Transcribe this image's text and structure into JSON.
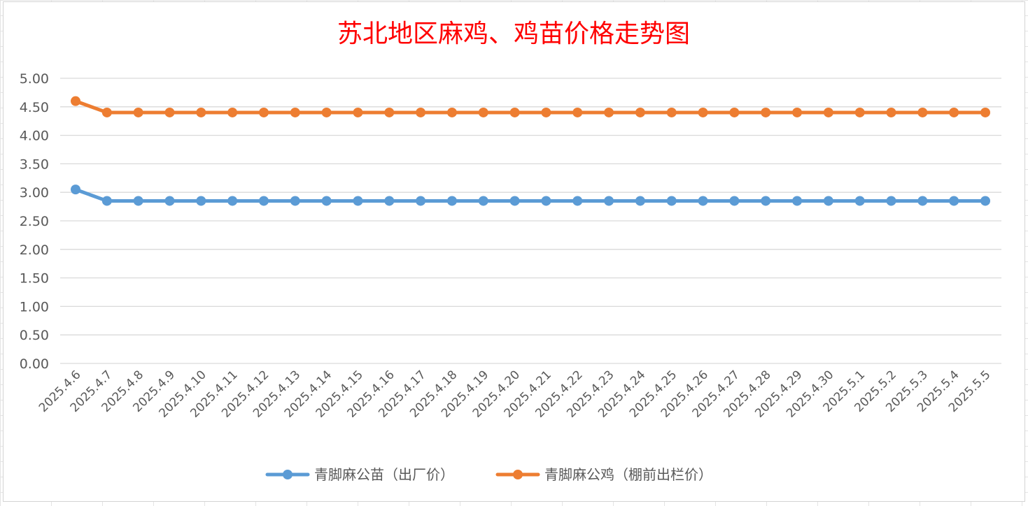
{
  "chart_data": {
    "type": "line",
    "title": "苏北地区麻鸡、鸡苗价格走势图",
    "categories": [
      "2025.4.6",
      "2025.4.7",
      "2025.4.8",
      "2025.4.9",
      "2025.4.10",
      "2025.4.11",
      "2025.4.12",
      "2025.4.13",
      "2025.4.14",
      "2025.4.15",
      "2025.4.16",
      "2025.4.17",
      "2025.4.18",
      "2025.4.19",
      "2025.4.20",
      "2025.4.21",
      "2025.4.22",
      "2025.4.23",
      "2025.4.24",
      "2025.4.25",
      "2025.4.26",
      "2025.4.27",
      "2025.4.28",
      "2025.4.29",
      "2025.4.30",
      "2025.5.1",
      "2025.5.2",
      "2025.5.3",
      "2025.5.4",
      "2025.5.5"
    ],
    "yticks": [
      "0.00",
      "0.50",
      "1.00",
      "1.50",
      "2.00",
      "2.50",
      "3.00",
      "3.50",
      "4.00",
      "4.50",
      "5.00"
    ],
    "ylim": [
      0,
      5
    ],
    "grid": true,
    "legend_position": "bottom",
    "series": [
      {
        "name": "青脚麻公苗（出厂价）",
        "color": "#5b9bd5",
        "values": [
          3.05,
          2.85,
          2.85,
          2.85,
          2.85,
          2.85,
          2.85,
          2.85,
          2.85,
          2.85,
          2.85,
          2.85,
          2.85,
          2.85,
          2.85,
          2.85,
          2.85,
          2.85,
          2.85,
          2.85,
          2.85,
          2.85,
          2.85,
          2.85,
          2.85,
          2.85,
          2.85,
          2.85,
          2.85,
          2.85
        ]
      },
      {
        "name": "青脚麻公鸡（棚前出栏价）",
        "color": "#ed7d31",
        "values": [
          4.6,
          4.4,
          4.4,
          4.4,
          4.4,
          4.4,
          4.4,
          4.4,
          4.4,
          4.4,
          4.4,
          4.4,
          4.4,
          4.4,
          4.4,
          4.4,
          4.4,
          4.4,
          4.4,
          4.4,
          4.4,
          4.4,
          4.4,
          4.4,
          4.4,
          4.4,
          4.4,
          4.4,
          4.4,
          4.4
        ]
      }
    ]
  }
}
